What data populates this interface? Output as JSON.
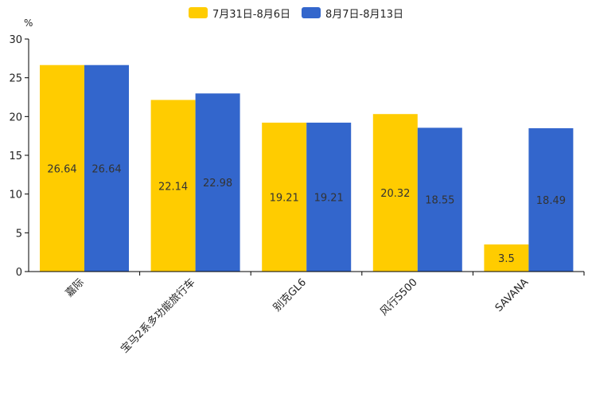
{
  "chart_data": {
    "type": "bar",
    "unit": "%",
    "categories": [
      "嘉际",
      "宝马2系多功能旅行车",
      "别克GL6",
      "风行S500",
      "SAVANA"
    ],
    "series": [
      {
        "name": "7月31日-8月6日",
        "color": "#FFCC00",
        "values": [
          26.64,
          22.14,
          19.21,
          20.32,
          3.5
        ],
        "labels": [
          "26.64",
          "22.14",
          "19.21",
          "20.32",
          "3.5"
        ]
      },
      {
        "name": "8月7日-8月13日",
        "color": "#3366CC",
        "values": [
          26.64,
          22.98,
          19.21,
          18.55,
          18.49
        ],
        "labels": [
          "26.64",
          "22.98",
          "19.21",
          "18.55",
          "18.49"
        ]
      }
    ],
    "ylim": [
      0,
      30
    ],
    "yticks": [
      "0",
      "5",
      "10",
      "15",
      "20",
      "25",
      "30"
    ],
    "grid": false,
    "legend_position": "top-center"
  }
}
